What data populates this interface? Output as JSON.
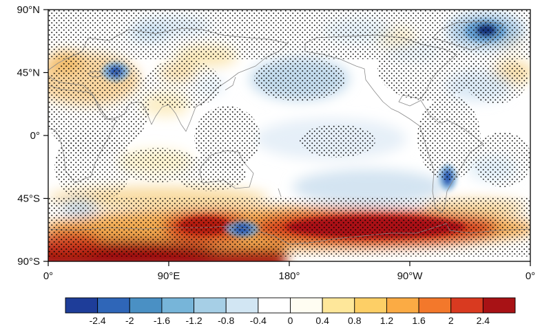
{
  "figure": {
    "y_axis": {
      "labels": [
        "90°N",
        "45°N",
        "0°",
        "45°S",
        "90°S"
      ]
    },
    "x_axis": {
      "labels": [
        "0°",
        "90°E",
        "180°",
        "90°W",
        "0°"
      ]
    },
    "colorbar": {
      "tick_labels": [
        "-2.4",
        "-2",
        "-1.6",
        "-1.2",
        "-0.8",
        "-0.4",
        "0",
        "0.4",
        "0.8",
        "1.2",
        "1.6",
        "2",
        "2.4"
      ],
      "colors": [
        "#1e3d99",
        "#2f66b8",
        "#4a90c4",
        "#77b5d9",
        "#a6cfe6",
        "#d2e6f3",
        "#ffffff",
        "#fffdf2",
        "#fee79a",
        "#fdcf66",
        "#fbab44",
        "#f3782b",
        "#d93a20",
        "#a81215"
      ]
    }
  },
  "chart_data": {
    "type": "heatmap",
    "title": "",
    "projection": "equirectangular global map with gray coastlines",
    "x_axis_ticks": [
      "0°",
      "90°E",
      "180°",
      "90°W",
      "0°"
    ],
    "y_axis_ticks": [
      "90°N",
      "45°N",
      "0°",
      "45°S",
      "90°S"
    ],
    "x_range": "0°E eastward through 180° and 90°W back to 0° (360° of longitude)",
    "y_range": "90°N to 90°S",
    "colorbar_levels": [
      -2.4,
      -2,
      -1.6,
      -1.2,
      -0.8,
      -0.4,
      0,
      0.4,
      0.8,
      1.2,
      1.6,
      2,
      2.4
    ],
    "colorbar_colors": [
      "#1e3d99",
      "#2f66b8",
      "#4a90c4",
      "#77b5d9",
      "#a6cfe6",
      "#d2e6f3",
      "#ffffff",
      "#fffdf2",
      "#fee79a",
      "#fdcf66",
      "#fbab44",
      "#f3782b",
      "#d93a20",
      "#a81215"
    ],
    "stippling": "dense black dot overlay covering most shaded regions of the map",
    "features": [
      {
        "region": "Southern Ocean, Pacific sector (55-75S, 150E-60W)",
        "approx_value": 2.4
      },
      {
        "region": "Southern Ocean near 60S, 100-140E",
        "approx_value": 2.2
      },
      {
        "region": "Antarctic sector 0-120E near pole (75-90S)",
        "approx_value": 2.6
      },
      {
        "region": "Subantarctic band 35-55S",
        "approx_value": 0.6
      },
      {
        "region": "Europe / North Africa / Middle East",
        "approx_value": 0.6
      },
      {
        "region": "Central Asia near 90E, 45N",
        "approx_value": 0.5
      },
      {
        "region": "Caspian region ~45N 50E (local cold spot)",
        "approx_value": -1.4
      },
      {
        "region": "Greenland / Baffin ~70N 40W (cold spot)",
        "approx_value": -2.2
      },
      {
        "region": "North Pacific 30-60N",
        "approx_value": -0.6
      },
      {
        "region": "Tropical central Pacific",
        "approx_value": -0.3
      },
      {
        "region": "South Pacific 30-55S",
        "approx_value": -0.5
      },
      {
        "region": "North Atlantic 45-60N",
        "approx_value": -0.4
      },
      {
        "region": "South of Australia ~62S 140E (cold spot)",
        "approx_value": -1.2
      },
      {
        "region": "Southern South America ~45S 70W (cold spot)",
        "approx_value": -1.2
      },
      {
        "region": "Elsewhere in tropics and mid-latitudes",
        "approx_value": 0
      }
    ]
  }
}
